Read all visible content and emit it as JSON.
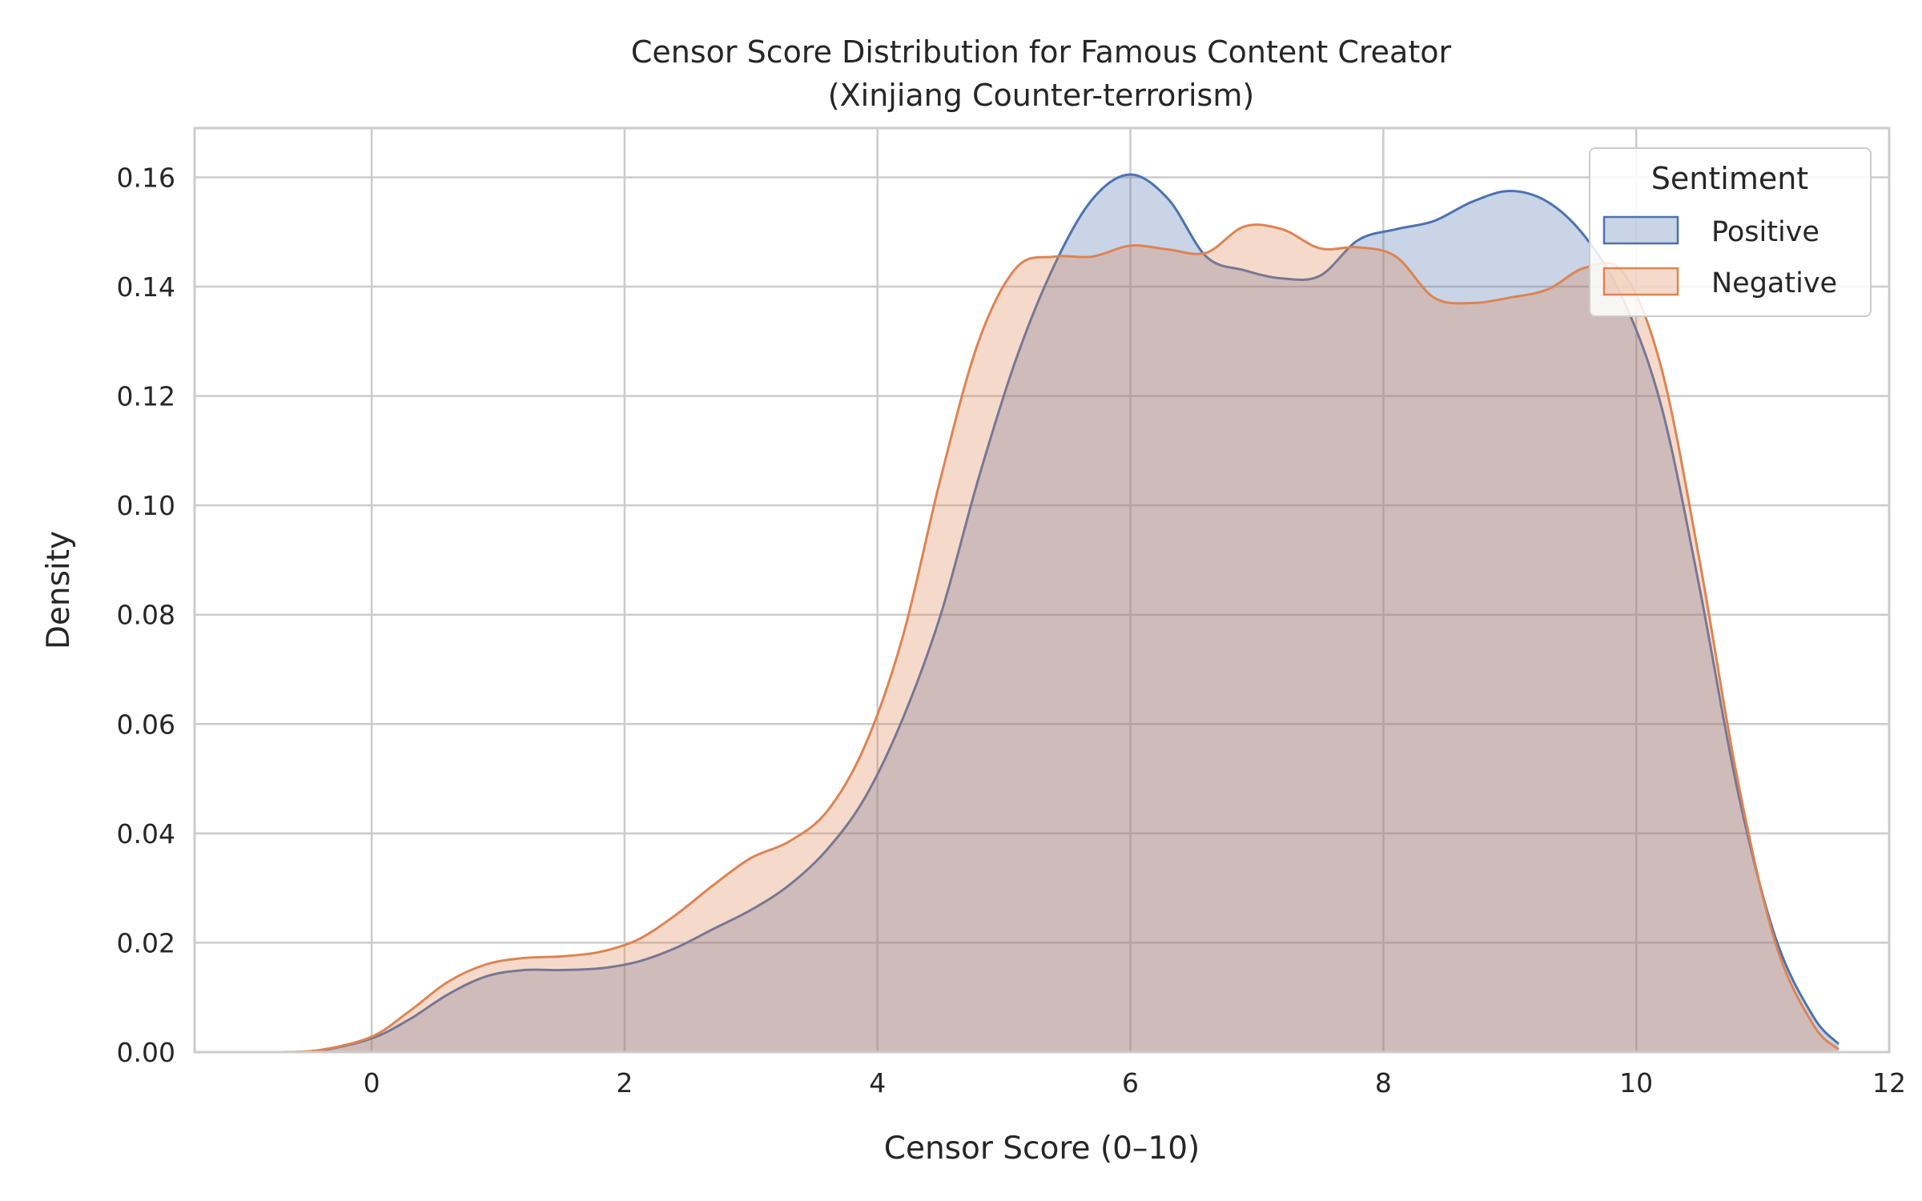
{
  "chart_data": {
    "type": "area",
    "title_lines": [
      "Censor Score Distribution for Famous Content Creator",
      "(Xinjiang Counter-terrorism)"
    ],
    "xlabel": "Censor Score (0–10)",
    "ylabel": "Density",
    "xlim": [
      -1.4,
      12.0
    ],
    "ylim": [
      0,
      0.169
    ],
    "x_ticks": [
      0,
      2,
      4,
      6,
      8,
      10,
      12
    ],
    "x_tick_labels": [
      "0",
      "2",
      "4",
      "6",
      "8",
      "10",
      "12"
    ],
    "y_ticks": [
      0.0,
      0.02,
      0.04,
      0.06,
      0.08,
      0.1,
      0.12,
      0.14,
      0.16
    ],
    "y_tick_labels": [
      "0.00",
      "0.02",
      "0.04",
      "0.06",
      "0.08",
      "0.10",
      "0.12",
      "0.14",
      "0.16"
    ],
    "grid": true,
    "legend": {
      "title": "Sentiment",
      "placement": "top-right"
    },
    "series": [
      {
        "name": "Positive",
        "color": "#4c72b0",
        "points": [
          [
            -0.7,
            0.0
          ],
          [
            -0.4,
            0.0003
          ],
          [
            0.0,
            0.0025
          ],
          [
            0.3,
            0.006
          ],
          [
            0.6,
            0.0105
          ],
          [
            0.9,
            0.0138
          ],
          [
            1.2,
            0.015
          ],
          [
            1.5,
            0.015
          ],
          [
            1.8,
            0.0153
          ],
          [
            2.1,
            0.0165
          ],
          [
            2.4,
            0.019
          ],
          [
            2.7,
            0.0225
          ],
          [
            3.0,
            0.026
          ],
          [
            3.3,
            0.0305
          ],
          [
            3.6,
            0.037
          ],
          [
            3.9,
            0.0465
          ],
          [
            4.2,
            0.061
          ],
          [
            4.5,
            0.08
          ],
          [
            4.8,
            0.105
          ],
          [
            5.1,
            0.127
          ],
          [
            5.4,
            0.144
          ],
          [
            5.7,
            0.156
          ],
          [
            6.0,
            0.1605
          ],
          [
            6.3,
            0.156
          ],
          [
            6.6,
            0.1455
          ],
          [
            6.9,
            0.143
          ],
          [
            7.2,
            0.1415
          ],
          [
            7.5,
            0.142
          ],
          [
            7.8,
            0.1485
          ],
          [
            8.1,
            0.1505
          ],
          [
            8.4,
            0.152
          ],
          [
            8.7,
            0.1555
          ],
          [
            9.0,
            0.1575
          ],
          [
            9.3,
            0.1555
          ],
          [
            9.6,
            0.149
          ],
          [
            9.9,
            0.1375
          ],
          [
            10.2,
            0.118
          ],
          [
            10.5,
            0.085
          ],
          [
            10.8,
            0.048
          ],
          [
            11.1,
            0.021
          ],
          [
            11.4,
            0.0065
          ],
          [
            11.6,
            0.0015
          ]
        ]
      },
      {
        "name": "Negative",
        "color": "#dd8452",
        "points": [
          [
            -0.7,
            0.0
          ],
          [
            -0.4,
            0.0004
          ],
          [
            0.0,
            0.0028
          ],
          [
            0.3,
            0.0075
          ],
          [
            0.6,
            0.0128
          ],
          [
            0.9,
            0.016
          ],
          [
            1.2,
            0.0172
          ],
          [
            1.5,
            0.0175
          ],
          [
            1.8,
            0.0183
          ],
          [
            2.1,
            0.0205
          ],
          [
            2.4,
            0.025
          ],
          [
            2.7,
            0.0305
          ],
          [
            3.0,
            0.0355
          ],
          [
            3.3,
            0.0385
          ],
          [
            3.6,
            0.044
          ],
          [
            3.9,
            0.056
          ],
          [
            4.2,
            0.076
          ],
          [
            4.5,
            0.105
          ],
          [
            4.8,
            0.13
          ],
          [
            5.1,
            0.1435
          ],
          [
            5.4,
            0.1455
          ],
          [
            5.7,
            0.1455
          ],
          [
            6.0,
            0.1475
          ],
          [
            6.3,
            0.1468
          ],
          [
            6.6,
            0.1462
          ],
          [
            6.9,
            0.151
          ],
          [
            7.2,
            0.1505
          ],
          [
            7.5,
            0.147
          ],
          [
            7.8,
            0.1472
          ],
          [
            8.1,
            0.1455
          ],
          [
            8.4,
            0.138
          ],
          [
            8.7,
            0.137
          ],
          [
            9.0,
            0.138
          ],
          [
            9.3,
            0.1395
          ],
          [
            9.6,
            0.1435
          ],
          [
            9.9,
            0.1425
          ],
          [
            10.2,
            0.125
          ],
          [
            10.5,
            0.09
          ],
          [
            10.8,
            0.05
          ],
          [
            11.1,
            0.02
          ],
          [
            11.4,
            0.005
          ],
          [
            11.6,
            0.0005
          ]
        ]
      }
    ]
  }
}
